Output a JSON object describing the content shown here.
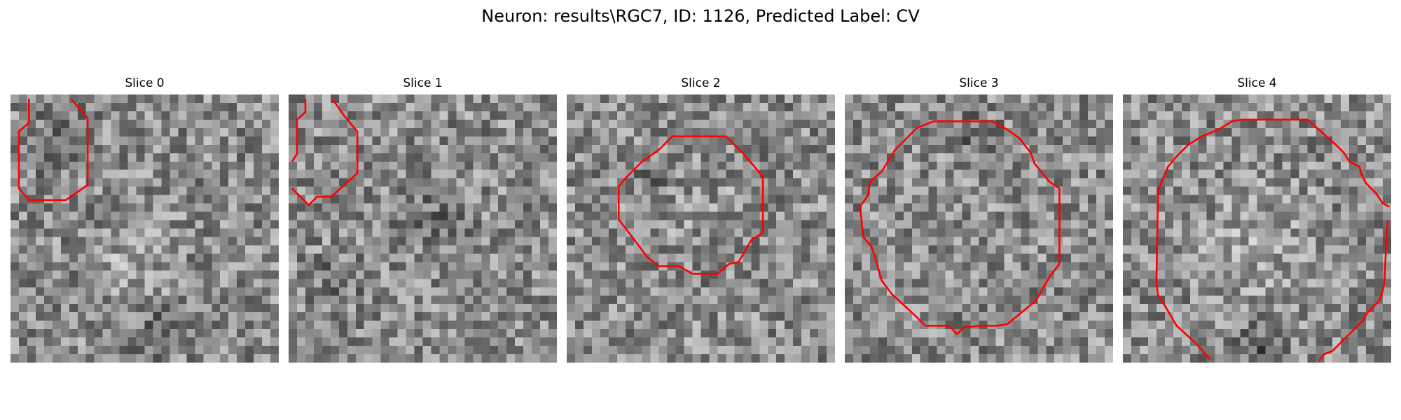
{
  "figure": {
    "title": "Neuron: results\\RGC7, ID: 1126, Predicted Label: CV"
  },
  "panels": [
    {
      "label": "Slice 0"
    },
    {
      "label": "Slice 1"
    },
    {
      "label": "Slice 2"
    },
    {
      "label": "Slice 3"
    },
    {
      "label": "Slice 4"
    }
  ],
  "colors": {
    "contour": "#ff0000",
    "colormap": "grayscale"
  }
}
